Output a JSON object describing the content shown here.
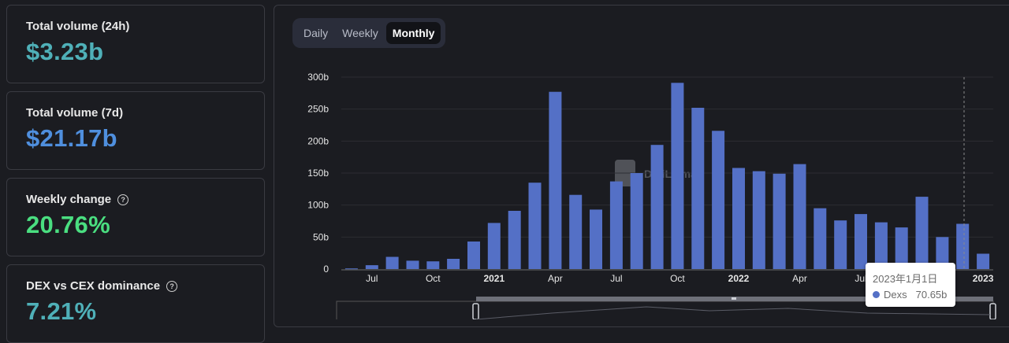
{
  "stats": [
    {
      "label": "Total volume (24h)",
      "value": "$3.23b",
      "color": "#4fb0b8",
      "help": false
    },
    {
      "label": "Total volume (7d)",
      "value": "$21.17b",
      "color": "#4f8fde",
      "help": false
    },
    {
      "label": "Weekly change",
      "value": "20.76%",
      "color": "#4ade80",
      "help": true
    },
    {
      "label": "DEX vs CEX dominance",
      "value": "7.21%",
      "color": "#4fb0b8",
      "help": true
    }
  ],
  "tabs": [
    {
      "label": "Daily",
      "active": false
    },
    {
      "label": "Weekly",
      "active": false
    },
    {
      "label": "Monthly",
      "active": true
    }
  ],
  "watermark": "DefiLlama",
  "tooltip": {
    "date": "2023年1月1日",
    "series": "Dexs",
    "value": "70.65b"
  },
  "chart_data": {
    "type": "bar",
    "series": [
      {
        "name": "Dexs",
        "color": "#5470c6"
      }
    ],
    "x_ticks": [
      "Jul",
      "Oct",
      "2021",
      "Apr",
      "Jul",
      "Oct",
      "2022",
      "Apr",
      "Jul",
      "Oct",
      "2023"
    ],
    "bold_ticks": [
      "2021",
      "2022",
      "2023"
    ],
    "y_ticks": [
      "0",
      "50b",
      "100b",
      "150b",
      "200b",
      "250b",
      "300b"
    ],
    "ylim": [
      0,
      300
    ],
    "y_unit": "b",
    "values": [
      1,
      6,
      19,
      13,
      12,
      16,
      43,
      72,
      91,
      135,
      277,
      116,
      93,
      137,
      150,
      194,
      291,
      252,
      216,
      158,
      153,
      149,
      164,
      95,
      76,
      86,
      73,
      65,
      113,
      50,
      70.65,
      24
    ],
    "highlight_index": 30,
    "grid": true
  }
}
